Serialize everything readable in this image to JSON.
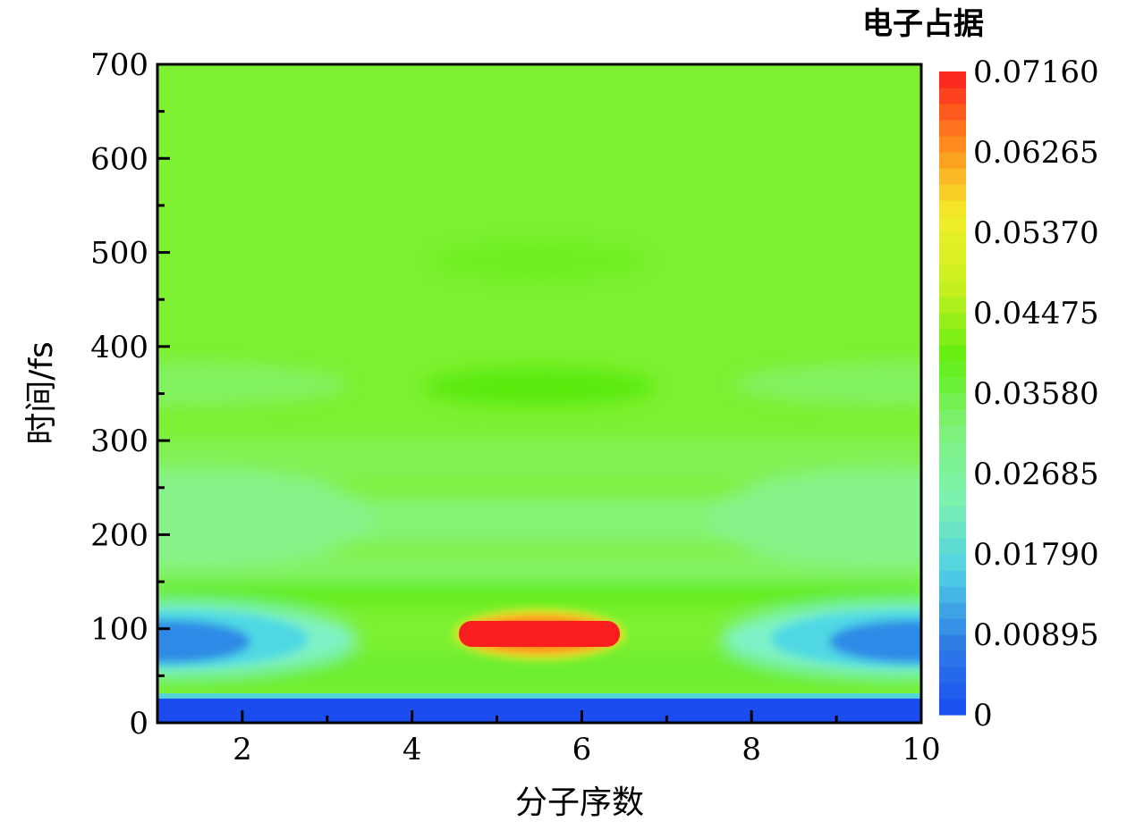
{
  "chart_data": {
    "type": "heatmap",
    "title": "",
    "xlabel": "分子序数",
    "ylabel": "时间/fs",
    "xlim": [
      1,
      10
    ],
    "ylim": [
      0,
      700
    ],
    "x_ticks": [
      {
        "value": 2,
        "label": "2"
      },
      {
        "value": 4,
        "label": "4"
      },
      {
        "value": 6,
        "label": "6"
      },
      {
        "value": 8,
        "label": "8"
      },
      {
        "value": 10,
        "label": "10"
      }
    ],
    "x_minor_ticks": [
      3,
      5,
      7,
      9
    ],
    "y_ticks": [
      {
        "value": 0,
        "label": "0"
      },
      {
        "value": 100,
        "label": "100"
      },
      {
        "value": 200,
        "label": "200"
      },
      {
        "value": 300,
        "label": "300"
      },
      {
        "value": 400,
        "label": "400"
      },
      {
        "value": 500,
        "label": "500"
      },
      {
        "value": 600,
        "label": "600"
      },
      {
        "value": 700,
        "label": "700"
      }
    ],
    "y_minor_ticks": [
      50,
      150,
      250,
      350,
      450,
      550,
      650
    ],
    "colorbar": {
      "title": "电子占据",
      "min": 0,
      "max": 0.0716,
      "levels": 40,
      "ticks": [
        {
          "value": 0,
          "label": "0"
        },
        {
          "value": 0.00895,
          "label": "0.00895"
        },
        {
          "value": 0.0179,
          "label": "0.01790"
        },
        {
          "value": 0.02685,
          "label": "0.02685"
        },
        {
          "value": 0.0358,
          "label": "0.03580"
        },
        {
          "value": 0.04475,
          "label": "0.04475"
        },
        {
          "value": 0.0537,
          "label": "0.05370"
        },
        {
          "value": 0.06265,
          "label": "0.06265"
        },
        {
          "value": 0.0716,
          "label": "0.07160"
        }
      ],
      "colors": [
        "#1a4cf0",
        "#2f7de6",
        "#4fd0e4",
        "#7cf2b0",
        "#7ef27a",
        "#63ee12",
        "#c8f020",
        "#f3ee2a",
        "#ff8a1e",
        "#fa1e1e"
      ]
    },
    "description_values": {
      "background_value": 0.032,
      "initial_band": {
        "t_range": [
          0,
          28
        ],
        "value": 0.004
      },
      "central_peak": {
        "molecule_range": [
          4.6,
          6.4
        ],
        "time": 93,
        "value": 0.0716
      },
      "edge_dips": {
        "molecules": [
          1,
          10
        ],
        "time": 85,
        "value": 0.009
      }
    }
  }
}
